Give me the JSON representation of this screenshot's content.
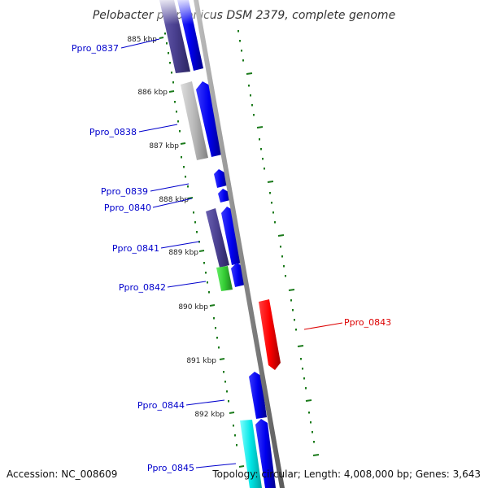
{
  "title": "Pelobacter propionicus DSM 2379, complete genome",
  "footer": {
    "accession": "Accession: NC_008609",
    "topology": "Topology: circular; Length: 4,008,000 bp; Genes: 3,643"
  },
  "scale_labels": [
    "885 kbp",
    "886 kbp",
    "887 kbp",
    "888 kbp",
    "889 kbp",
    "890 kbp",
    "891 kbp",
    "892 kbp"
  ],
  "genes": [
    {
      "name": "Ppro_0837",
      "color": "#0000cc"
    },
    {
      "name": "Ppro_0838",
      "color": "#0000cc"
    },
    {
      "name": "Ppro_0839",
      "color": "#0000cc"
    },
    {
      "name": "Ppro_0840",
      "color": "#0000cc"
    },
    {
      "name": "Ppro_0841",
      "color": "#0000cc"
    },
    {
      "name": "Ppro_0842",
      "color": "#0000cc"
    },
    {
      "name": "Ppro_0843",
      "color": "#dd0000"
    },
    {
      "name": "Ppro_0844",
      "color": "#0000cc"
    },
    {
      "name": "Ppro_0845",
      "color": "#0000cc"
    }
  ],
  "colors": {
    "backbone": "#8c8c8c",
    "cds_forward": "#0000ee",
    "cds_reverse": "#ff0000",
    "cog_dark_purple": "#4a4090",
    "cog_gray": "#b8b8b8",
    "cog_green": "#33cc33",
    "cog_cyan": "#00e5e5",
    "tick": "#1a7a1a"
  }
}
